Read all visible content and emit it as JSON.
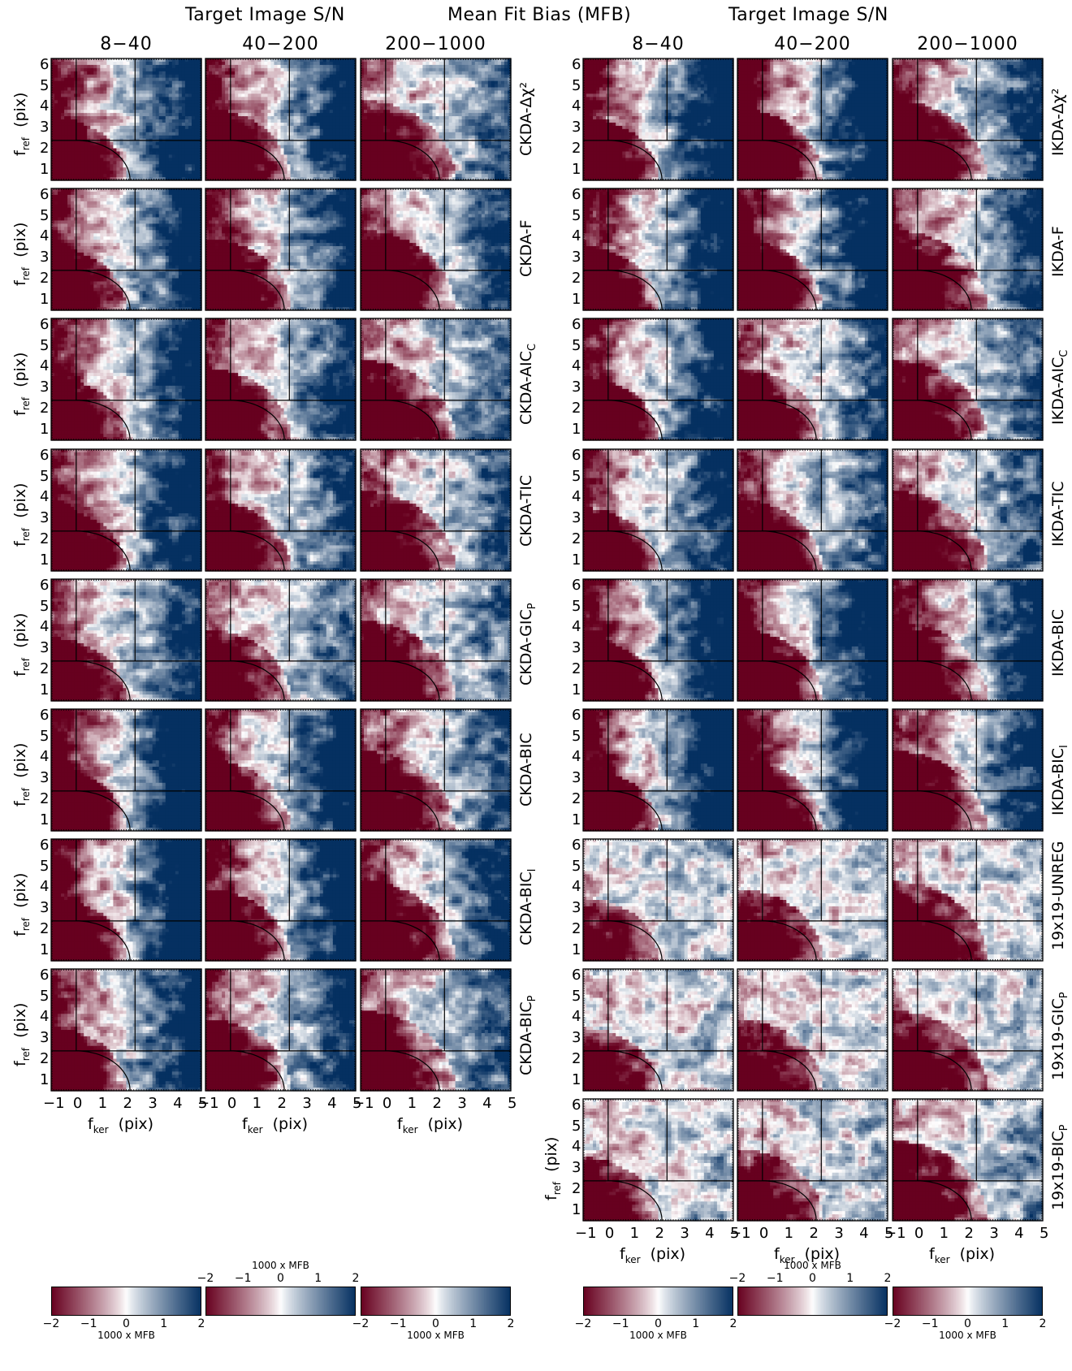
{
  "figure": {
    "header_left": "Target Image S/N",
    "header_mid": "Mean Fit Bias (MFB)",
    "header_right": "Target Image S/N",
    "sn_bins": [
      "8−40",
      "40−200",
      "200−1000"
    ]
  },
  "chart_data": [
    {
      "type": "heatmap",
      "panel_group": "left",
      "rows": [
        "CKDA-Δχ²",
        "CKDA-F",
        "CKDA-AIC_C",
        "CKDA-TIC",
        "CKDA-GIC_P",
        "CKDA-BIC",
        "CKDA-BIC_I",
        "CKDA-BIC_P"
      ],
      "columns": [
        "8−40",
        "40−200",
        "200−1000"
      ],
      "x_ticks": [
        "−1",
        "0",
        "1",
        "2",
        "3",
        "4",
        "5"
      ],
      "y_ticks": [
        "1",
        "2",
        "3",
        "4",
        "5",
        "6"
      ],
      "xlabel_main": "f",
      "xlabel_sub": "ker",
      "xlabel_unit": "(pix)",
      "ylabel_main": "f",
      "ylabel_sub": "ref",
      "ylabel_unit": "(pix)",
      "xlim": [
        -1,
        5
      ],
      "ylim": [
        0.5,
        6.3
      ],
      "color_scale": {
        "min": -2,
        "max": 2,
        "colors": [
          "#67001f",
          "#ffffff",
          "#053061"
        ]
      }
    },
    {
      "type": "heatmap",
      "panel_group": "right",
      "rows": [
        "IKDA-Δχ²",
        "IKDA-F",
        "IKDA-AIC_C",
        "IKDA-TIC",
        "IKDA-BIC",
        "IKDA-BIC_I",
        "19x19-UNREG",
        "19x19-GIC_P",
        "19x19-BIC_P"
      ],
      "columns": [
        "8−40",
        "40−200",
        "200−1000"
      ],
      "x_ticks": [
        "−1",
        "0",
        "1",
        "2",
        "3",
        "4",
        "5"
      ],
      "y_ticks": [
        "1",
        "2",
        "3",
        "4",
        "5",
        "6"
      ],
      "xlabel_main": "f",
      "xlabel_sub": "ker",
      "xlabel_unit": "(pix)",
      "ylabel_main": "f",
      "ylabel_sub": "ref",
      "ylabel_unit": "(pix)",
      "xlim": [
        -1,
        5
      ],
      "ylim": [
        0.5,
        6.3
      ],
      "color_scale": {
        "min": -2,
        "max": 2,
        "colors": [
          "#67001f",
          "#ffffff",
          "#053061"
        ]
      }
    }
  ],
  "colorbars": {
    "title": "1000 x MFB",
    "ticks": [
      "−2",
      "−1",
      "0",
      "1",
      "2"
    ]
  }
}
